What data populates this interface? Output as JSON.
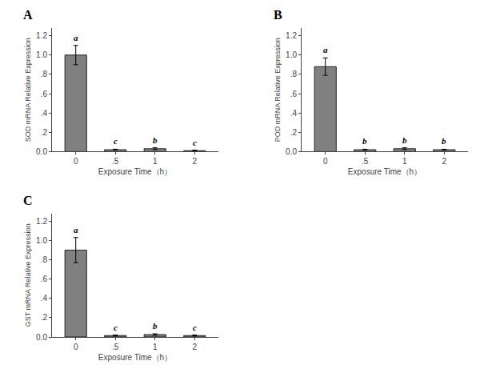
{
  "chart_data": [
    {
      "type": "bar",
      "title": "A",
      "xlabel": "Exposure Time（h）",
      "ylabel": "SOD mRNA Relative Expression",
      "categories": [
        "0",
        ".5",
        "1",
        "2"
      ],
      "values": [
        1.0,
        0.02,
        0.03,
        0.01
      ],
      "errors": [
        0.1,
        0.005,
        0.01,
        0.005
      ],
      "annotations": [
        {
          "x": "0",
          "text": "a"
        },
        {
          "x": ".5",
          "text": "c"
        },
        {
          "x": "1",
          "text": "b"
        },
        {
          "x": "2",
          "text": "c"
        }
      ],
      "color": "#808080",
      "ylim": [
        0,
        1.28
      ],
      "yticks": [
        {
          "value": 0,
          "label": "0.0"
        },
        {
          "value": 0.2,
          "label": ".2"
        },
        {
          "value": 0.4,
          "label": ".4"
        },
        {
          "value": 0.6,
          "label": ".6"
        },
        {
          "value": 0.8,
          "label": ".8"
        },
        {
          "value": 1.0,
          "label": "1.0"
        },
        1.2
      ],
      "grid": false
    },
    {
      "type": "bar",
      "title": "B",
      "xlabel": "Exposure Time（h）",
      "ylabel": "POD mRNA Relative Expression",
      "categories": [
        "0",
        ".5",
        "1",
        "2"
      ],
      "values": [
        0.88,
        0.02,
        0.03,
        0.02
      ],
      "errors": [
        0.09,
        0.005,
        0.01,
        0.005
      ],
      "annotations": [
        {
          "x": "0",
          "text": "a"
        },
        {
          "x": ".5",
          "text": "b"
        },
        {
          "x": "1",
          "text": "b"
        },
        {
          "x": "2",
          "text": "b"
        }
      ],
      "color": "#808080",
      "ylim": [
        0,
        1.28
      ],
      "yticks": [
        {
          "value": 0,
          "label": "0.0"
        },
        {
          "value": 0.2,
          "label": ".2"
        },
        {
          "value": 0.4,
          "label": ".4"
        },
        {
          "value": 0.6,
          "label": ".6"
        },
        {
          "value": 0.8,
          "label": ".8"
        },
        {
          "value": 1.0,
          "label": "1.0"
        },
        1.2
      ],
      "grid": false
    },
    {
      "type": "bar",
      "title": "C",
      "xlabel": "Exposure Time（h）",
      "ylabel": "GST mRNA Relative Expression",
      "categories": [
        "0",
        ".5",
        "1",
        "2"
      ],
      "values": [
        0.9,
        0.015,
        0.025,
        0.015
      ],
      "errors": [
        0.13,
        0.005,
        0.008,
        0.005
      ],
      "annotations": [
        {
          "x": "0",
          "text": "a"
        },
        {
          "x": ".5",
          "text": "c"
        },
        {
          "x": "1",
          "text": "b"
        },
        {
          "x": "2",
          "text": "c"
        }
      ],
      "color": "#808080",
      "ylim": [
        0,
        1.28
      ],
      "yticks": [
        {
          "value": 0,
          "label": "0.0"
        },
        {
          "value": 0.2,
          "label": ".2"
        },
        {
          "value": 0.4,
          "label": ".4"
        },
        {
          "value": 0.6,
          "label": ".6"
        },
        {
          "value": 0.8,
          "label": ".8"
        },
        {
          "value": 1.0,
          "label": "1.0"
        },
        1.2
      ],
      "grid": false
    }
  ]
}
